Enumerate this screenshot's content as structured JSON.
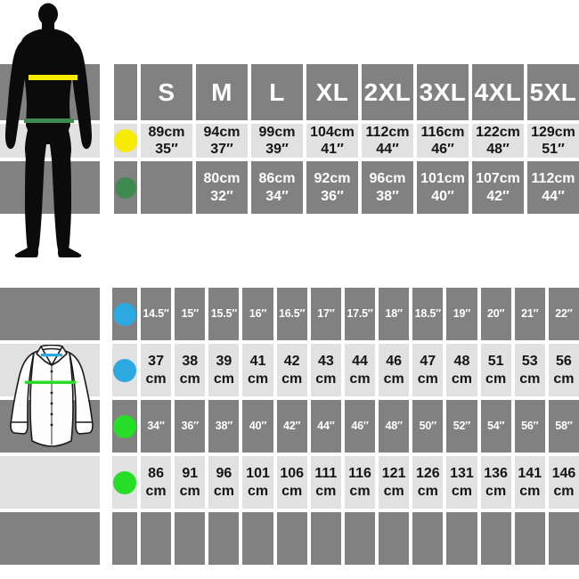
{
  "colors": {
    "band_gray": "#818181",
    "band_light": "#e1e1e1",
    "yellow": "#f7ec00",
    "dark_green": "#3f8a4f",
    "blue": "#2ba9e0",
    "green": "#27dd27",
    "silhouette_black": "#0b0b0b",
    "shirt_outline": "#1a1a1a"
  },
  "chart_data": [
    {
      "type": "table",
      "name": "adult-size-table",
      "header": [
        "S",
        "M",
        "L",
        "XL",
        "2XL",
        "3XL",
        "4XL",
        "5XL"
      ],
      "rows": [
        {
          "label": "chest",
          "dot": "yellow",
          "shade": "light",
          "cm": [
            "89cm",
            "94cm",
            "99cm",
            "104cm",
            "112cm",
            "116cm",
            "122cm",
            "129cm"
          ],
          "inches": [
            "35″",
            "37″",
            "39″",
            "41″",
            "44″",
            "46″",
            "48″",
            "51″"
          ]
        },
        {
          "label": "waist",
          "dot": "dark_green",
          "shade": "gray",
          "cm": [
            "",
            "80cm",
            "86cm",
            "92cm",
            "96cm",
            "101cm",
            "107cm",
            "112cm"
          ],
          "inches": [
            "",
            "32″",
            "34″",
            "36″",
            "38″",
            "40″",
            "42″",
            "44″"
          ]
        }
      ]
    },
    {
      "type": "table",
      "name": "shirt-size-table",
      "rows": [
        {
          "label": "collar-inches",
          "dot": "blue",
          "shade": "gray",
          "values": [
            "14.5″",
            "15″",
            "15.5″",
            "16″",
            "16.5″",
            "17″",
            "17.5″",
            "18″",
            "18.5″",
            "19″",
            "20″",
            "21″",
            "22″"
          ]
        },
        {
          "label": "collar-cm",
          "dot": "blue",
          "shade": "light",
          "unit": "cm",
          "values": [
            "37",
            "38",
            "39",
            "41",
            "42",
            "43",
            "44",
            "46",
            "47",
            "48",
            "51",
            "53",
            "56"
          ]
        },
        {
          "label": "chest-inches",
          "dot": "green",
          "shade": "gray",
          "values": [
            "34″",
            "36″",
            "38″",
            "40″",
            "42″",
            "44″",
            "46″",
            "48″",
            "50″",
            "52″",
            "54″",
            "56″",
            "58″"
          ]
        },
        {
          "label": "chest-cm",
          "dot": "green",
          "shade": "light",
          "unit": "cm",
          "values": [
            "86",
            "91",
            "96",
            "101",
            "106",
            "111",
            "116",
            "121",
            "126",
            "131",
            "136",
            "141",
            "146"
          ]
        },
        {
          "label": "empty",
          "dot": null,
          "shade": "gray",
          "values": [
            "",
            "",
            "",
            "",
            "",
            "",
            "",
            "",
            "",
            "",
            "",
            "",
            ""
          ]
        }
      ]
    }
  ]
}
